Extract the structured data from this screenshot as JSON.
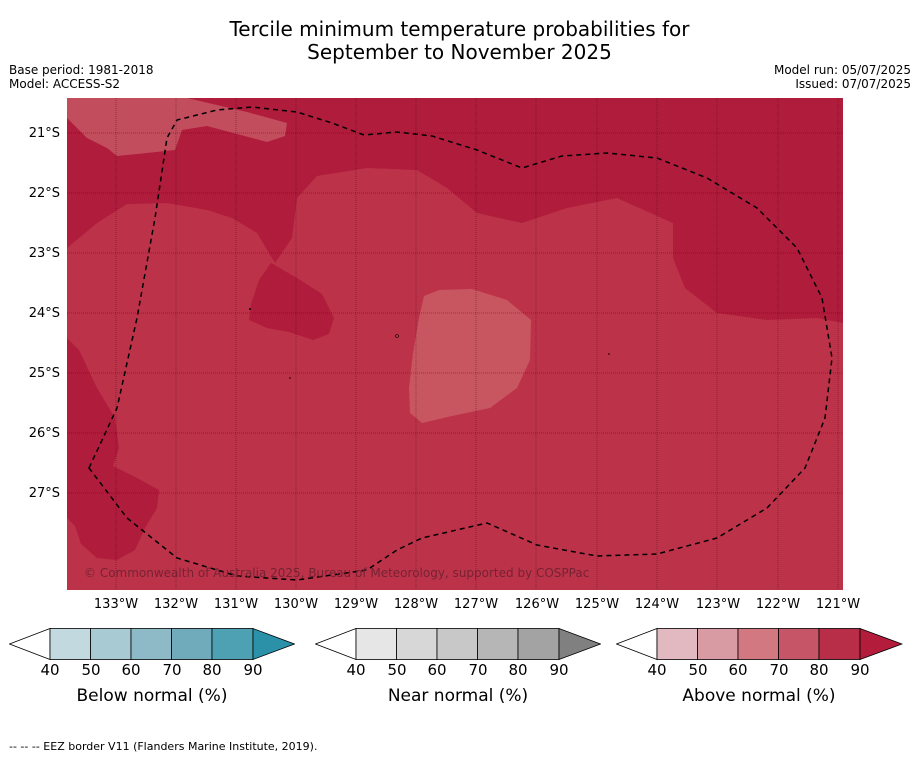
{
  "title_line1": "Tercile minimum temperature probabilities for",
  "title_line2": "September to November 2025",
  "base_period": "Base period: 1981-2018",
  "model": "Model: ACCESS-S2",
  "model_run": "Model run: 05/07/2025",
  "issued": "Issued: 07/07/2025",
  "latitude_labels": [
    "21°S",
    "22°S",
    "23°S",
    "24°S",
    "25°S",
    "26°S",
    "27°S"
  ],
  "longitude_labels": [
    "133°W",
    "132°W",
    "131°W",
    "130°W",
    "129°W",
    "128°W",
    "127°W",
    "126°W",
    "125°W",
    "124°W",
    "123°W",
    "122°W",
    "121°W"
  ],
  "copyright": "© Commonwealth of Australia 2025, Bureau of Meteorology, supported by COSPPac",
  "legends": [
    {
      "title": "Below normal (%)",
      "ticks": [
        "40",
        "50",
        "60",
        "70",
        "80",
        "90"
      ],
      "colors": [
        "#ffffff",
        "#c2d9df",
        "#a8cad3",
        "#8dbac6",
        "#70abbb",
        "#4da1b2",
        "#2b91a8"
      ]
    },
    {
      "title": "Near normal (%)",
      "ticks": [
        "40",
        "50",
        "60",
        "70",
        "80",
        "90"
      ],
      "colors": [
        "#ffffff",
        "#e6e6e6",
        "#d7d7d7",
        "#c8c8c8",
        "#b6b6b6",
        "#a3a3a3",
        "#808080"
      ]
    },
    {
      "title": "Above normal (%)",
      "ticks": [
        "40",
        "50",
        "60",
        "70",
        "80",
        "90"
      ],
      "colors": [
        "#ffffff",
        "#e3b9c1",
        "#d89ba4",
        "#d17880",
        "#c55567",
        "#b82d47",
        "#b31c3b"
      ]
    }
  ],
  "map_colors": {
    "base": "#bc3249",
    "dark": "#b01c3b",
    "light": "#c24d5d",
    "lighter": "#c85660"
  },
  "footnote": "--  --  -- EEZ border V11 (Flanders Marine Institute, 2019)."
}
